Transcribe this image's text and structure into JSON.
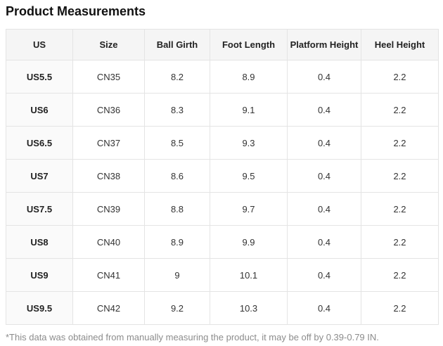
{
  "page": {
    "title": "Product Measurements",
    "footnote": "*This data was obtained from manually measuring the product, it may be off by 0.39-0.79 IN."
  },
  "table": {
    "columns": [
      "US",
      "Size",
      "Ball Girth",
      "Foot Length",
      "Platform Height",
      "Heel Height"
    ],
    "rows": [
      [
        "US5.5",
        "CN35",
        "8.2",
        "8.9",
        "0.4",
        "2.2"
      ],
      [
        "US6",
        "CN36",
        "8.3",
        "9.1",
        "0.4",
        "2.2"
      ],
      [
        "US6.5",
        "CN37",
        "8.5",
        "9.3",
        "0.4",
        "2.2"
      ],
      [
        "US7",
        "CN38",
        "8.6",
        "9.5",
        "0.4",
        "2.2"
      ],
      [
        "US7.5",
        "CN39",
        "8.8",
        "9.7",
        "0.4",
        "2.2"
      ],
      [
        "US8",
        "CN40",
        "8.9",
        "9.9",
        "0.4",
        "2.2"
      ],
      [
        "US9",
        "CN41",
        "9",
        "10.1",
        "0.4",
        "2.2"
      ],
      [
        "US9.5",
        "CN42",
        "9.2",
        "10.3",
        "0.4",
        "2.2"
      ]
    ]
  },
  "colors": {
    "header_bg": "#f5f5f5",
    "row_header_bg": "#fafafa",
    "border": "#e4e4e4",
    "title_text": "#111111",
    "cell_text": "#333333",
    "footnote_text": "#8c8c8c"
  }
}
